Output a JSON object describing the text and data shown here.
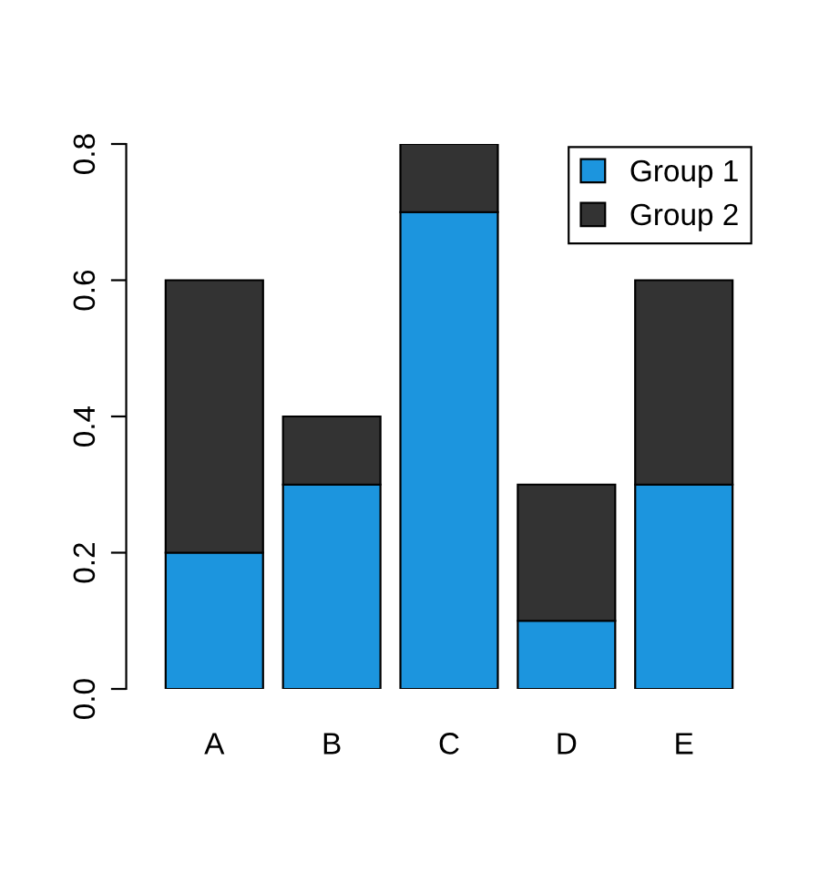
{
  "chart_data": {
    "type": "bar",
    "stacked": true,
    "categories": [
      "A",
      "B",
      "C",
      "D",
      "E"
    ],
    "series": [
      {
        "name": "Group 1",
        "color": "#1c95de",
        "values": [
          0.2,
          0.3,
          0.7,
          0.1,
          0.3
        ]
      },
      {
        "name": "Group 2",
        "color": "#333333",
        "values": [
          0.4,
          0.1,
          0.1,
          0.2,
          0.3
        ]
      }
    ],
    "ylim": [
      0,
      0.8
    ],
    "yticks": [
      {
        "value": 0,
        "label": "0.0"
      },
      0.2,
      0.4,
      0.6,
      0.8
    ],
    "grid": false,
    "legend": "top right"
  }
}
